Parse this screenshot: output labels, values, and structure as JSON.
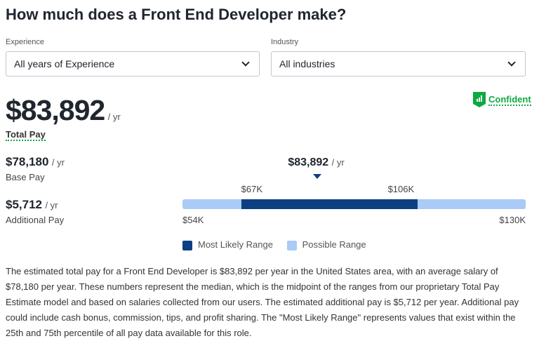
{
  "title": "How much does a Front End Developer make?",
  "filters": {
    "experience": {
      "label": "Experience",
      "value": "All years of Experience"
    },
    "industry": {
      "label": "Industry",
      "value": "All industries"
    }
  },
  "total_pay": {
    "value": "$83,892",
    "unit": "/ yr",
    "label": "Total Pay"
  },
  "confidence": {
    "label": "Confident",
    "color": "#0caa41"
  },
  "base_pay": {
    "value": "$78,180",
    "unit": "/ yr",
    "label": "Base Pay"
  },
  "additional_pay": {
    "value": "$5,712",
    "unit": "/ yr",
    "label": "Additional Pay"
  },
  "range": {
    "median_label": "$83,892",
    "median_unit": "/ yr",
    "median": 83892,
    "min": 54000,
    "max": 130000,
    "likely_low": 67000,
    "likely_high": 106000,
    "min_label": "$54K",
    "max_label": "$130K",
    "likely_low_label": "$67K",
    "likely_high_label": "$106K",
    "colors": {
      "likely": "#0d3f83",
      "possible": "#a9cbf5"
    }
  },
  "legend": {
    "likely": "Most Likely Range",
    "possible": "Possible Range"
  },
  "description": "The estimated total pay for a Front End Developer is $83,892 per year in the United States area, with an average salary of $78,180 per year. These numbers represent the median, which is the midpoint of the ranges from our proprietary Total Pay Estimate model and based on salaries collected from our users. The estimated additional pay is $5,712 per year. Additional pay could include cash bonus, commission, tips, and profit sharing. The \"Most Likely Range\" represents values that exist within the 25th and 75th percentile of all pay data available for this role."
}
